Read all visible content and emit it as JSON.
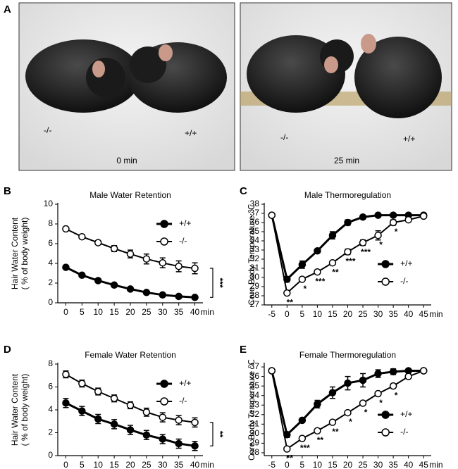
{
  "figure": {
    "panel_label": "A",
    "photos": [
      {
        "genotypes": [
          "-/-",
          "+/+"
        ],
        "time": "0 min"
      },
      {
        "genotypes": [
          "-/-",
          "+/+"
        ],
        "time": "25 min"
      }
    ]
  },
  "chart_data": [
    {
      "type": "line",
      "panel_label": "B",
      "title": "Male Water Retention",
      "ylabel": [
        "Hair Water Content",
        "( % of body weight)"
      ],
      "x_unit": "min",
      "x": [
        0,
        5,
        10,
        15,
        20,
        25,
        30,
        35,
        40
      ],
      "xlim": [
        -2.5,
        42.5
      ],
      "xticks": [
        0,
        5,
        10,
        15,
        20,
        25,
        30,
        35,
        40
      ],
      "ylim": [
        0,
        10
      ],
      "yticks": [
        0,
        2,
        4,
        6,
        8,
        10
      ],
      "legend": "upper right",
      "significance": "***",
      "series": [
        {
          "name": "+/+",
          "color": "#000000",
          "marker_fill": "#000000",
          "values": [
            3.6,
            2.8,
            2.25,
            1.8,
            1.4,
            1.05,
            0.8,
            0.65,
            0.55
          ],
          "errors": [
            0.15,
            0.1,
            0.1,
            0.1,
            0.1,
            0.1,
            0.1,
            0.1,
            0.1
          ]
        },
        {
          "name": "-/-",
          "color": "#000000",
          "marker_fill": "#ffffff",
          "values": [
            7.5,
            6.7,
            6.1,
            5.5,
            4.95,
            4.45,
            4.05,
            3.7,
            3.5
          ],
          "errors": [
            0.2,
            0.2,
            0.2,
            0.3,
            0.4,
            0.5,
            0.5,
            0.55,
            0.55
          ]
        }
      ]
    },
    {
      "type": "line",
      "panel_label": "C",
      "title": "Male Thermoregulation",
      "ylabel": [
        "Core Body Temperature ℃"
      ],
      "x_unit": "min",
      "x": [
        -5,
        0,
        5,
        10,
        15,
        20,
        25,
        30,
        35,
        40,
        45
      ],
      "xlim": [
        -7.5,
        47.5
      ],
      "xticks": [
        -5,
        0,
        5,
        10,
        15,
        20,
        25,
        30,
        35,
        40,
        45
      ],
      "ylim": [
        27,
        38
      ],
      "yticks": [
        27,
        28,
        29,
        30,
        31,
        32,
        33,
        34,
        35,
        36,
        37,
        38
      ],
      "legend": "lower right",
      "stars": [
        null,
        "**",
        "*",
        "***",
        "**",
        "***",
        "***",
        "*",
        "*",
        null,
        null
      ],
      "series": [
        {
          "name": "+/+",
          "color": "#000000",
          "marker_fill": "#000000",
          "values": [
            36.8,
            29.8,
            31.4,
            32.9,
            34.6,
            36.0,
            36.6,
            36.8,
            36.8,
            36.8,
            36.8
          ],
          "errors": [
            0.1,
            0.3,
            0.4,
            0.2,
            0.4,
            0.3,
            0.2,
            0.1,
            0.1,
            0.1,
            0.1
          ]
        },
        {
          "name": "-/-",
          "color": "#000000",
          "marker_fill": "#ffffff",
          "values": [
            36.8,
            28.3,
            29.8,
            30.6,
            31.6,
            32.8,
            33.8,
            34.6,
            36.0,
            36.3,
            36.7
          ],
          "errors": [
            0.1,
            0.2,
            0.2,
            0.2,
            0.2,
            0.3,
            0.3,
            0.5,
            0.3,
            0.2,
            0.1
          ]
        }
      ]
    },
    {
      "type": "line",
      "panel_label": "D",
      "title": "Female Water Retention",
      "ylabel": [
        "Hair Water Content",
        "( % of body weight)"
      ],
      "x_unit": "min",
      "x": [
        0,
        5,
        10,
        15,
        20,
        25,
        30,
        35,
        40
      ],
      "xlim": [
        -2.5,
        42.5
      ],
      "xticks": [
        0,
        5,
        10,
        15,
        20,
        25,
        30,
        35,
        40
      ],
      "ylim": [
        0,
        8
      ],
      "yticks": [
        0,
        2,
        4,
        6,
        8
      ],
      "legend": "upper right",
      "significance": "**",
      "series": [
        {
          "name": "+/+",
          "color": "#000000",
          "marker_fill": "#000000",
          "values": [
            4.6,
            3.9,
            3.2,
            2.75,
            2.25,
            1.8,
            1.45,
            1.05,
            0.85
          ],
          "errors": [
            0.4,
            0.4,
            0.4,
            0.4,
            0.4,
            0.4,
            0.4,
            0.4,
            0.4
          ]
        },
        {
          "name": "-/-",
          "color": "#000000",
          "marker_fill": "#ffffff",
          "values": [
            7.1,
            6.3,
            5.6,
            5.0,
            4.4,
            3.8,
            3.35,
            3.1,
            2.9
          ],
          "errors": [
            0.3,
            0.3,
            0.3,
            0.3,
            0.3,
            0.35,
            0.4,
            0.4,
            0.4
          ]
        }
      ]
    },
    {
      "type": "line",
      "panel_label": "E",
      "title": "Female Thermoregulation",
      "ylabel": [
        "Core Body Temperature ℃"
      ],
      "x_unit": "min",
      "x": [
        -5,
        0,
        5,
        10,
        15,
        20,
        25,
        30,
        35,
        40,
        45
      ],
      "xlim": [
        -7.5,
        47.5
      ],
      "xticks": [
        -5,
        0,
        5,
        10,
        15,
        20,
        25,
        30,
        35,
        40,
        45
      ],
      "ylim": [
        27.7,
        37.3
      ],
      "yticks": [
        28,
        29,
        30,
        31,
        32,
        33,
        34,
        35,
        36,
        37
      ],
      "legend": "lower right",
      "stars": [
        null,
        "**",
        "***",
        "**",
        "**",
        "*",
        "*",
        "*",
        "*",
        null,
        null
      ],
      "series": [
        {
          "name": "+/+",
          "color": "#000000",
          "marker_fill": "#000000",
          "values": [
            36.6,
            29.9,
            31.4,
            33.1,
            34.3,
            35.3,
            35.6,
            36.3,
            36.5,
            36.6,
            36.6
          ],
          "errors": [
            0.1,
            0.3,
            0.2,
            0.4,
            0.6,
            0.7,
            0.7,
            0.4,
            0.3,
            0.2,
            0.1
          ]
        },
        {
          "name": "-/-",
          "color": "#000000",
          "marker_fill": "#ffffff",
          "values": [
            36.6,
            28.4,
            29.5,
            30.3,
            31.2,
            32.2,
            33.2,
            34.2,
            35.0,
            36.0,
            36.6
          ],
          "errors": [
            0.1,
            0.2,
            0.2,
            0.2,
            0.2,
            0.2,
            0.2,
            0.2,
            0.2,
            0.2,
            0.1
          ]
        }
      ]
    }
  ]
}
